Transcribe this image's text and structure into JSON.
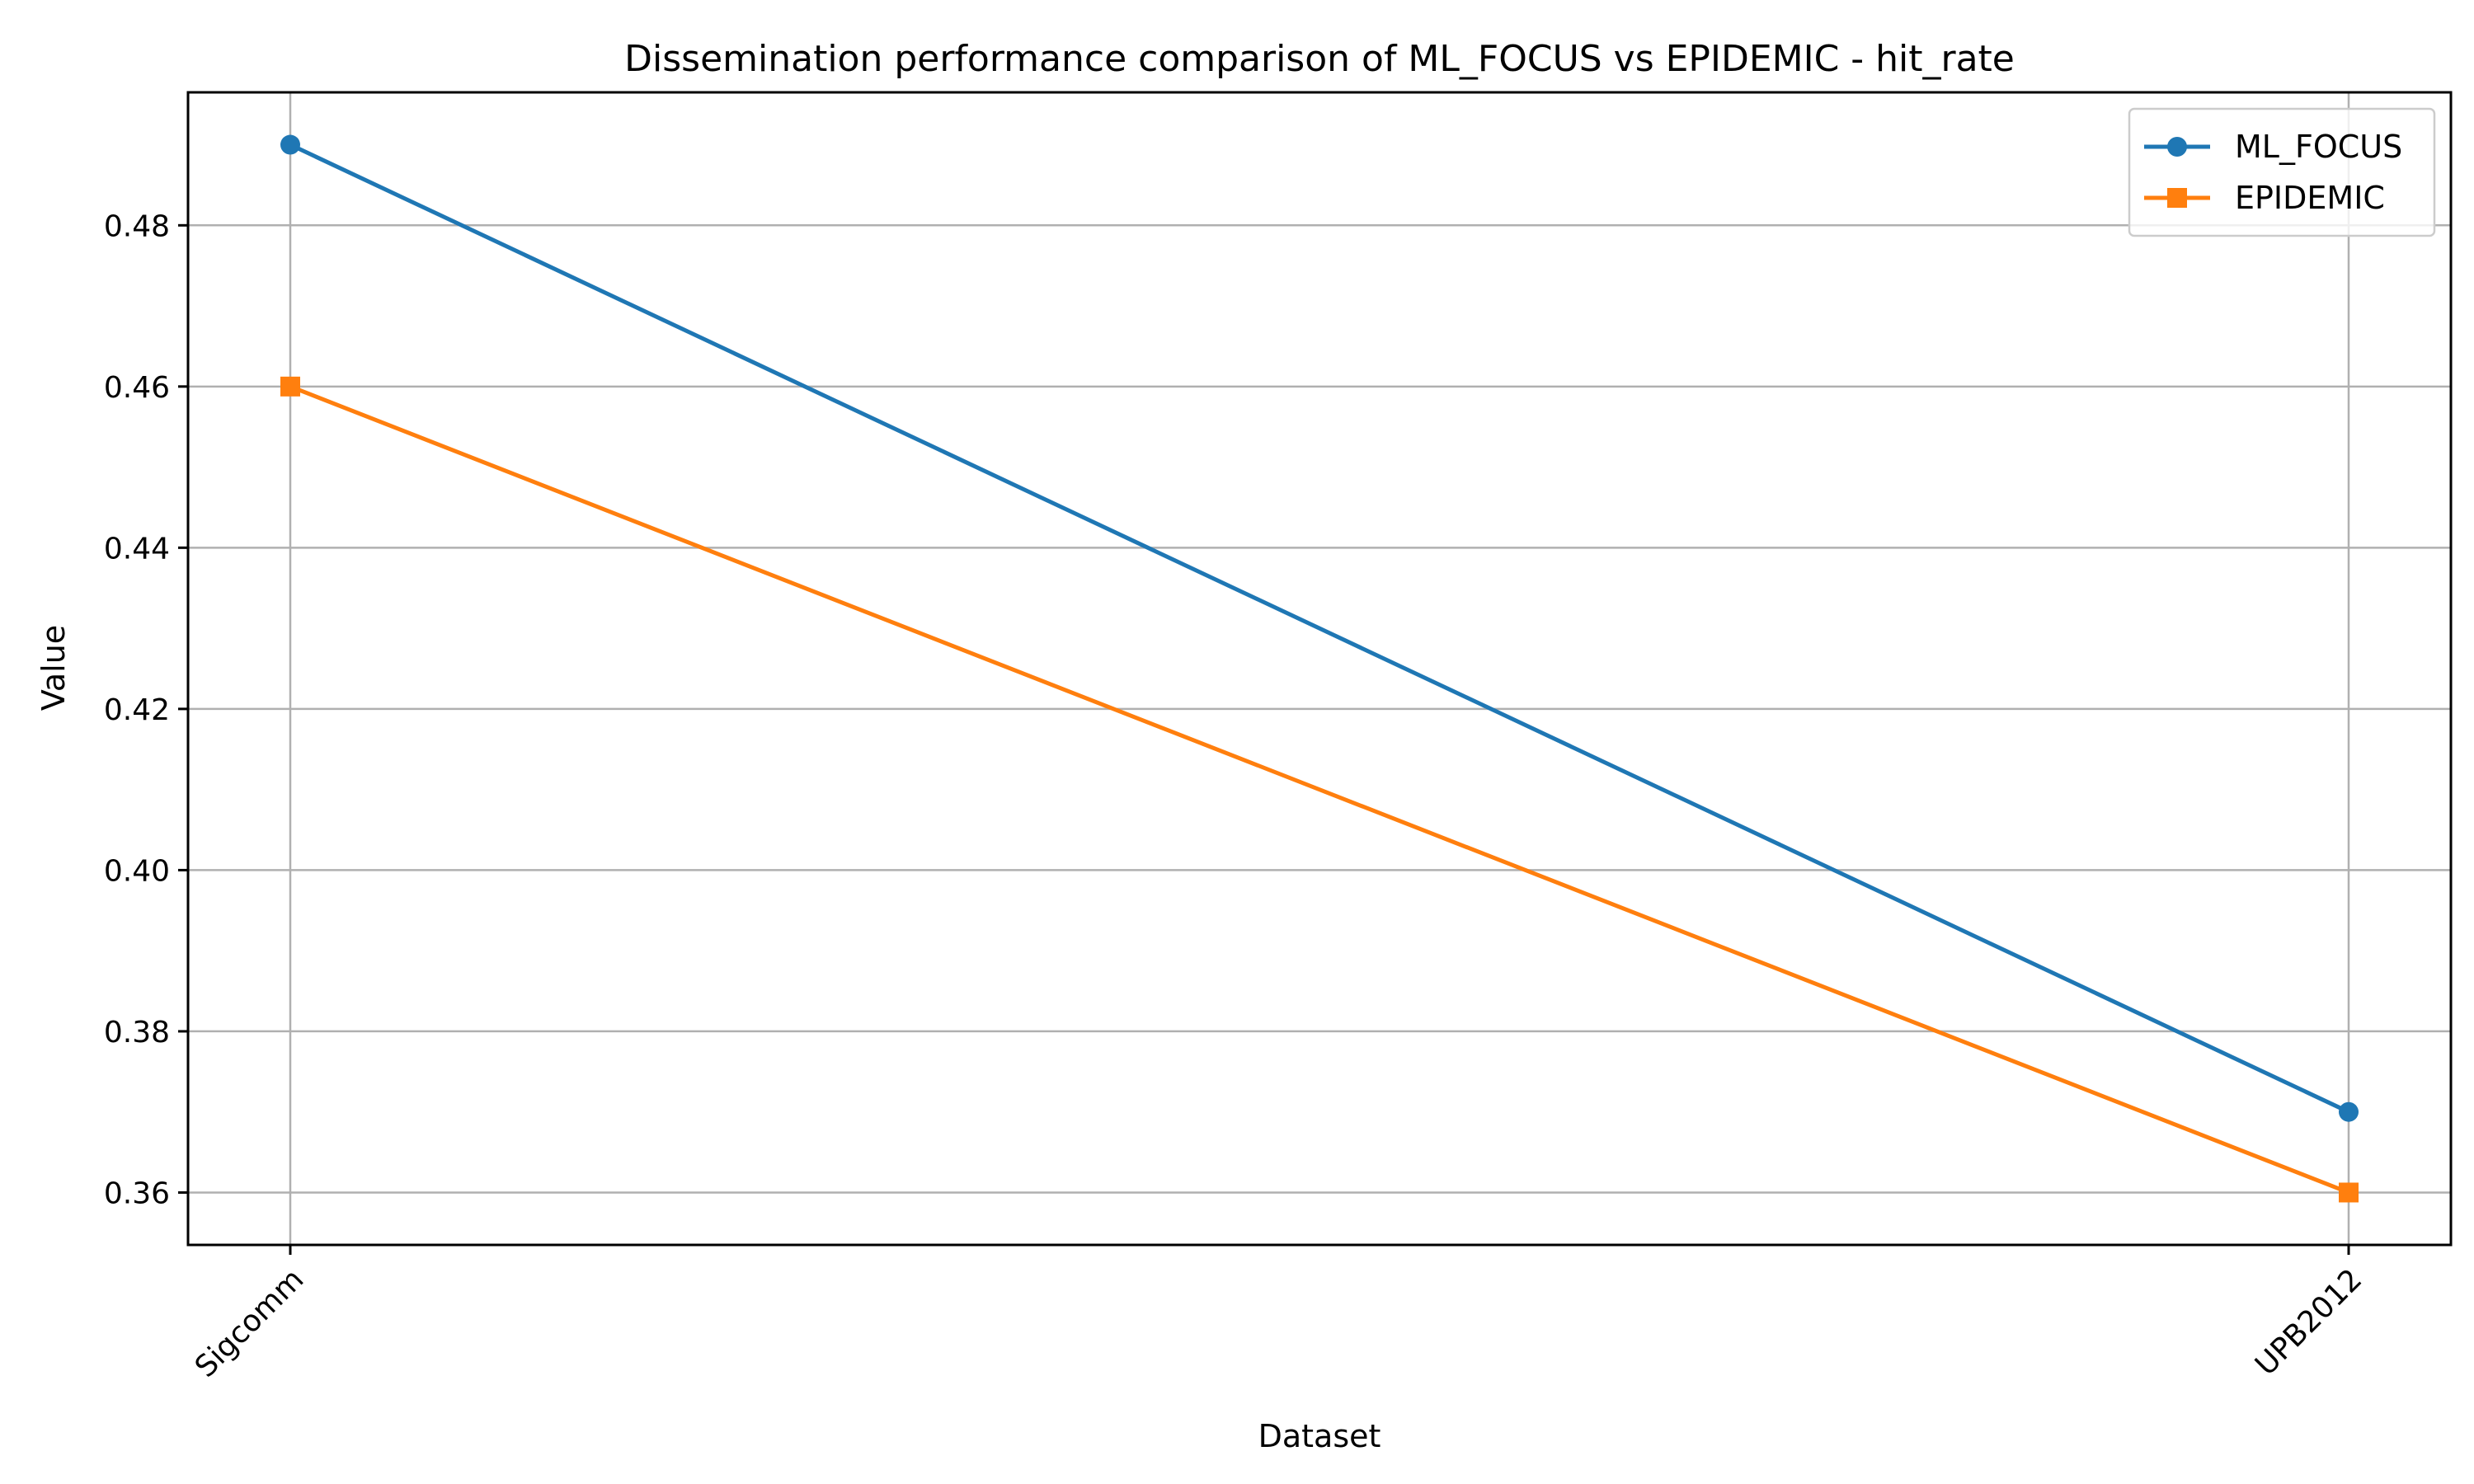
{
  "chart_data": {
    "type": "line",
    "title": "Dissemination performance comparison of ML_FOCUS vs EPIDEMIC - hit_rate",
    "xlabel": "Dataset",
    "ylabel": "Value",
    "categories": [
      "Sigcomm",
      "UPB2012"
    ],
    "series": [
      {
        "name": "ML_FOCUS",
        "values": [
          0.49,
          0.37
        ],
        "color": "#1f77b4",
        "marker": "circle"
      },
      {
        "name": "EPIDEMIC",
        "values": [
          0.46,
          0.36
        ],
        "color": "#ff7f0e",
        "marker": "square"
      }
    ],
    "ylim": [
      0.3535,
      0.4965
    ],
    "yticks": [
      "0.36",
      "0.38",
      "0.40",
      "0.42",
      "0.44",
      "0.46",
      "0.48"
    ],
    "grid": true,
    "legend_position": "top-right",
    "xtick_rotation": -45
  }
}
